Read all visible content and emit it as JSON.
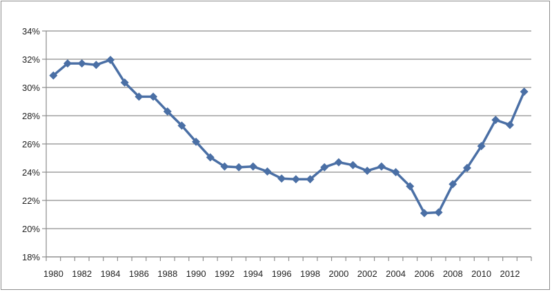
{
  "chart_data": {
    "type": "line",
    "title": "",
    "xlabel": "",
    "ylabel": "",
    "x": [
      1980,
      1981,
      1982,
      1983,
      1984,
      1985,
      1986,
      1987,
      1988,
      1989,
      1990,
      1991,
      1992,
      1993,
      1994,
      1995,
      1996,
      1997,
      1998,
      1999,
      2000,
      2001,
      2002,
      2003,
      2004,
      2005,
      2006,
      2007,
      2008,
      2009,
      2010,
      2011,
      2012,
      2013
    ],
    "series": [
      {
        "values": [
          30.85,
          31.7,
          31.7,
          31.6,
          31.95,
          30.35,
          29.35,
          29.35,
          28.3,
          27.3,
          26.15,
          25.05,
          24.4,
          24.35,
          24.4,
          24.05,
          23.55,
          23.5,
          23.5,
          24.35,
          24.7,
          24.5,
          24.1,
          24.4,
          24.0,
          23.0,
          21.1,
          21.15,
          23.15,
          24.3,
          25.85,
          27.7,
          27.35,
          29.7
        ]
      }
    ],
    "ylim": [
      18,
      34
    ],
    "ytick_values": [
      18,
      20,
      22,
      24,
      26,
      28,
      30,
      32,
      34
    ],
    "ytick_labels": [
      "18%",
      "20%",
      "22%",
      "24%",
      "26%",
      "28%",
      "30%",
      "32%",
      "34%"
    ],
    "xtick_labels": [
      "1980",
      "1982",
      "1984",
      "1986",
      "1988",
      "1990",
      "1992",
      "1994",
      "1996",
      "1998",
      "2000",
      "2002",
      "2004",
      "2006",
      "2008",
      "2010",
      "2012"
    ],
    "grid": true,
    "legend": "none",
    "colors": {
      "line": "#4a6fa5",
      "grid": "#8c8c8c",
      "axis": "#8c8c8c"
    }
  }
}
